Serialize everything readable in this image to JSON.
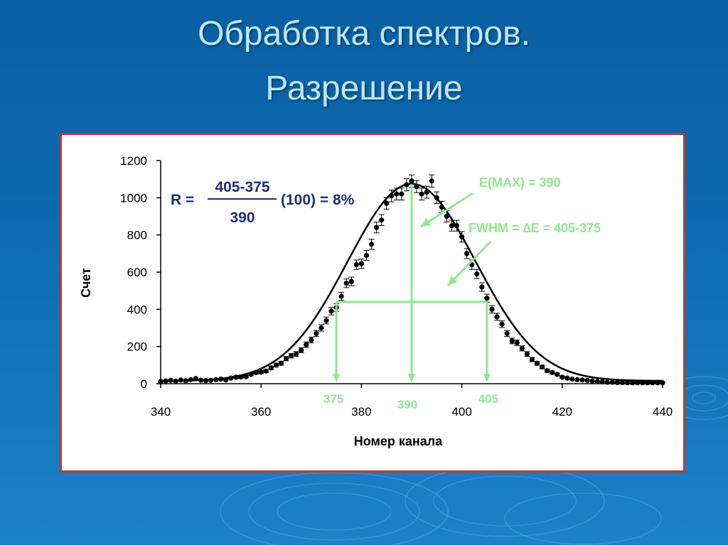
{
  "slide": {
    "title_line1": "Обработка спектров.",
    "title_line2": "Разрешение"
  },
  "colors": {
    "annotation": "#8ee88e",
    "formula": "#1f2d7a",
    "curve": "#000000",
    "frame_border": "#c0392b"
  },
  "chart_data": {
    "type": "scatter",
    "xlabel": "Номер канала",
    "ylabel": "Счет",
    "xlim": [
      340,
      440
    ],
    "ylim": [
      0,
      1200
    ],
    "xticks": [
      340,
      360,
      380,
      400,
      420,
      440
    ],
    "yticks": [
      0,
      200,
      400,
      600,
      800,
      1000,
      1200
    ],
    "grid": false,
    "error_bars": true,
    "fit_curve": {
      "type": "gaussian",
      "center": 390,
      "amplitude": 1060,
      "fwhm": 30,
      "baseline": 15
    },
    "x": [
      340,
      341,
      342,
      343,
      344,
      345,
      346,
      347,
      348,
      349,
      350,
      351,
      352,
      353,
      354,
      355,
      356,
      357,
      358,
      359,
      360,
      361,
      362,
      363,
      364,
      365,
      366,
      367,
      368,
      369,
      370,
      371,
      372,
      373,
      374,
      375,
      376,
      377,
      378,
      379,
      380,
      381,
      382,
      383,
      384,
      385,
      386,
      387,
      388,
      389,
      390,
      391,
      392,
      393,
      394,
      395,
      396,
      397,
      398,
      399,
      400,
      401,
      402,
      403,
      404,
      405,
      406,
      407,
      408,
      409,
      410,
      411,
      412,
      413,
      414,
      415,
      416,
      417,
      418,
      419,
      420,
      421,
      422,
      423,
      424,
      425,
      426,
      427,
      428,
      429,
      430,
      431,
      432,
      433,
      434,
      435,
      436,
      437,
      438,
      439,
      440
    ],
    "y": [
      12,
      15,
      18,
      14,
      20,
      16,
      22,
      28,
      19,
      17,
      18,
      22,
      25,
      20,
      30,
      35,
      36,
      38,
      50,
      60,
      62,
      68,
      85,
      100,
      110,
      135,
      150,
      160,
      180,
      210,
      235,
      270,
      300,
      340,
      390,
      410,
      470,
      540,
      550,
      640,
      645,
      690,
      750,
      840,
      880,
      970,
      1010,
      1020,
      1020,
      1070,
      1090,
      1060,
      1020,
      1030,
      1090,
      1000,
      950,
      900,
      850,
      850,
      790,
      700,
      640,
      590,
      520,
      460,
      400,
      360,
      320,
      270,
      230,
      220,
      190,
      160,
      130,
      110,
      90,
      70,
      60,
      50,
      35,
      30,
      25,
      22,
      20,
      18,
      15,
      12,
      10,
      8,
      8,
      6,
      6,
      5,
      5,
      5,
      5,
      5,
      5,
      5,
      5
    ],
    "annotations": {
      "formula_lhs": "R =",
      "formula_numerator": "405-375",
      "formula_denominator": "390",
      "formula_rhs": "(100) = 8%",
      "emax_label": "E(MAX) = 390",
      "fwhm_label": "FWHM = ∆E = 405-375",
      "fwhm_left": 375,
      "fwhm_right": 405,
      "peak": 390,
      "fwhm_level": 440,
      "marker_left_label": "375",
      "marker_center_label": "390",
      "marker_right_label": "405"
    }
  }
}
